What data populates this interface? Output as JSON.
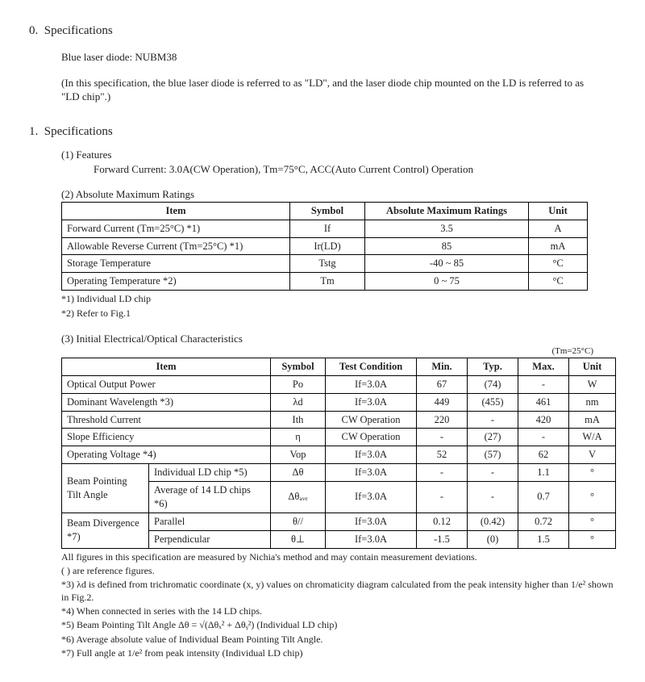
{
  "sec0": {
    "num": "0.",
    "heading": "Specifications",
    "line1": "Blue laser diode: NUBM38",
    "line2": "(In this specification, the blue laser diode is referred to as \"LD\", and the laser diode chip mounted on the LD is referred to as \"LD chip\".)"
  },
  "sec1": {
    "num": "1.",
    "heading": "Specifications",
    "sub1_label": "(1) Features",
    "sub1_text": "Forward Current: 3.0A(CW Operation), Tm=75°C, ACC(Auto Current Control) Operation"
  },
  "table2": {
    "label": "(2) Absolute Maximum Ratings",
    "columns": [
      "Item",
      "Symbol",
      "Absolute Maximum Ratings",
      "Unit"
    ],
    "col_widths": [
      "270px",
      "80px",
      "190px",
      "60px"
    ],
    "rows": [
      [
        "Forward Current (Tm=25°C) *1)",
        "If",
        "3.5",
        "A"
      ],
      [
        "Allowable Reverse Current (Tm=25°C) *1)",
        "Ir(LD)",
        "85",
        "mA"
      ],
      [
        "Storage Temperature",
        "Tstg",
        "-40 ~ 85",
        "°C"
      ],
      [
        "Operating Temperature *2)",
        "Tm",
        "0 ~ 75",
        "°C"
      ]
    ],
    "notes": [
      "*1) Individual LD chip",
      "*2) Refer to Fig.1"
    ]
  },
  "table3": {
    "label": "(3) Initial Electrical/Optical Characteristics",
    "condition": "(Tm=25°C)",
    "columns": [
      "Item",
      "Symbol",
      "Test Condition",
      "Min.",
      "Typ.",
      "Max.",
      "Unit"
    ],
    "col_widths": [
      "240px",
      "55px",
      "100px",
      "50px",
      "50px",
      "50px",
      "45px"
    ],
    "rows": [
      {
        "item": "Optical Output Power",
        "sym": "Po",
        "cond": "If=3.0A",
        "min": "67",
        "typ": "(74)",
        "max": "-",
        "unit": "W"
      },
      {
        "item": "Dominant Wavelength *3)",
        "sym": "λd",
        "cond": "If=3.0A",
        "min": "449",
        "typ": "(455)",
        "max": "461",
        "unit": "nm"
      },
      {
        "item": "Threshold Current",
        "sym": "Ith",
        "cond": "CW Operation",
        "min": "220",
        "typ": "-",
        "max": "420",
        "unit": "mA"
      },
      {
        "item": "Slope Efficiency",
        "sym": "η",
        "cond": "CW Operation",
        "min": "-",
        "typ": "(27)",
        "max": "-",
        "unit": "W/A"
      },
      {
        "item": "Operating Voltage *4)",
        "sym": "Vop",
        "cond": "If=3.0A",
        "min": "52",
        "typ": "(57)",
        "max": "62",
        "unit": "V"
      }
    ],
    "group_bp": {
      "label": "Beam Pointing Tilt Angle",
      "sub": [
        {
          "sub": "Individual LD chip *5)",
          "sym": "Δθ",
          "cond": "If=3.0A",
          "min": "-",
          "typ": "-",
          "max": "1.1",
          "unit": "°"
        },
        {
          "sub": "Average of 14 LD chips *6)",
          "sym": "Δθₐᵥₑ",
          "cond": "If=3.0A",
          "min": "-",
          "typ": "-",
          "max": "0.7",
          "unit": "°"
        }
      ]
    },
    "group_div": {
      "label": "Beam Divergence *7)",
      "sub": [
        {
          "sub": "Parallel",
          "sym": "θ//",
          "cond": "If=3.0A",
          "min": "0.12",
          "typ": "(0.42)",
          "max": "0.72",
          "unit": "°"
        },
        {
          "sub": "Perpendicular",
          "sym": "θ⊥",
          "cond": "If=3.0A",
          "min": "-1.5",
          "typ": "(0)",
          "max": "1.5",
          "unit": "°"
        }
      ]
    },
    "footnotes": [
      "All figures in this specification are measured by Nichia's method and may contain measurement deviations.",
      "( ) are reference figures.",
      "*3) λd is defined from trichromatic coordinate (x, y) values on chromaticity diagram calculated from the peak intensity higher than 1/e² shown in Fig.2.",
      "*4) When connected in series with the 14 LD chips.",
      "*5) Beam Pointing Tilt Angle  Δθ = √(Δθₓ² + Δθᵧ²)   (Individual LD chip)",
      "*6) Average absolute value of Individual Beam Pointing Tilt Angle.",
      "*7) Full angle at 1/e² from peak intensity (Individual LD chip)"
    ]
  }
}
